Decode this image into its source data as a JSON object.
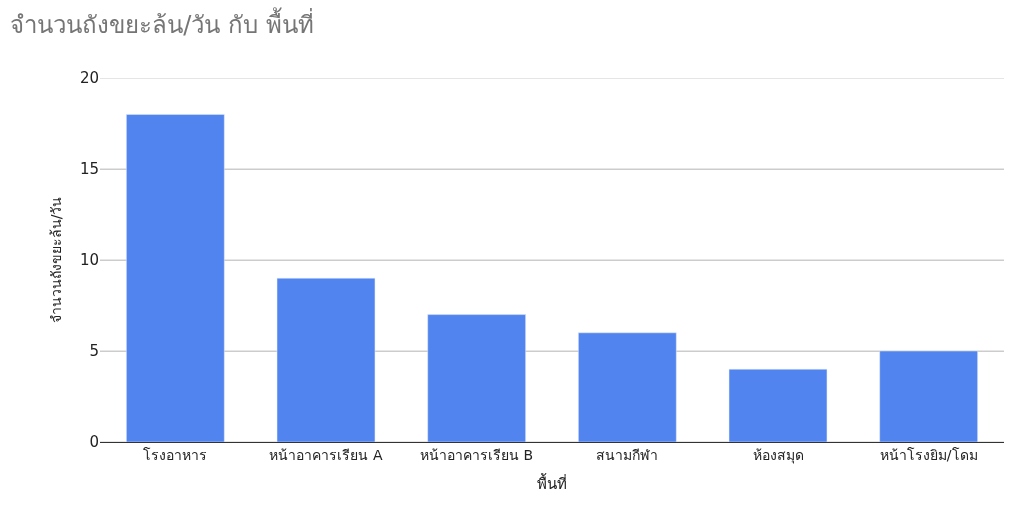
{
  "chart_data": {
    "type": "bar",
    "title": "จำนวนถังขยะล้น/วัน กับ พื้นที่",
    "xlabel": "พื้นที่",
    "ylabel": "จำนวนถังขยะล้น/วัน",
    "categories": [
      "โรงอาหาร",
      "หน้าอาคารเรียน A",
      "หน้าอาคารเรียน B",
      "สนามกีฬา",
      "ห้องสมุด",
      "หน้าโรงยิม/โดม"
    ],
    "values": [
      18,
      9,
      7,
      6,
      4,
      5
    ],
    "color": "#5184ee",
    "ylim": [
      0,
      20
    ],
    "yticks": [
      0,
      5,
      10,
      15,
      20
    ],
    "grid": "y"
  }
}
